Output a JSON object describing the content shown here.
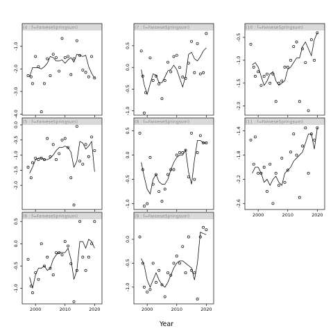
{
  "xlabel": "Year",
  "chart_data": [
    {
      "type": "line",
      "title": "(4 : f=FaroeseSpringsum)",
      "xticks": [
        2000,
        2010,
        2020
      ],
      "xlim": [
        1995.5,
        2022.5
      ],
      "ylim": [
        -4.05,
        -0.3
      ],
      "yticks": [
        -1.0,
        -2.0,
        -3.0,
        -4.0
      ],
      "ytick_labels": [
        "-1.0",
        "-2.0",
        "-3.0",
        "-4.0"
      ],
      "show_xticks": false,
      "line_x": [
        1998,
        1999,
        2000,
        2001,
        2002,
        2003,
        2004,
        2005,
        2006,
        2007,
        2008,
        2009,
        2010,
        2011,
        2012,
        2013,
        2014,
        2015,
        2016,
        2017,
        2018,
        2019,
        2020
      ],
      "line_y": [
        -2.35,
        -1.95,
        -1.95,
        -1.95,
        -2.0,
        -1.9,
        -1.75,
        -1.45,
        -1.5,
        -1.65,
        -1.65,
        -1.6,
        -1.75,
        -1.6,
        -1.5,
        -1.7,
        -1.35,
        -1.4,
        -1.45,
        -1.4,
        -1.9,
        -2.2,
        -2.4
      ],
      "points_x": [
        1997.5,
        1998.5,
        1999,
        2000,
        2001,
        2002,
        2003,
        2004,
        2005,
        2006,
        2007,
        2008,
        2009,
        2010,
        2011,
        2012,
        2013,
        2014,
        2015,
        2016,
        2017,
        2018,
        2019,
        2020
      ],
      "points_y": [
        -2.3,
        -2.35,
        -2.65,
        -1.45,
        -1.9,
        -3.9,
        -2.65,
        -1.55,
        -2.3,
        -1.35,
        -1.5,
        -2.1,
        -0.65,
        -1.5,
        -1.45,
        -2.25,
        -1.55,
        -0.75,
        -1.4,
        -2.05,
        -2.15,
        -2.35,
        -1.45,
        -2.4
      ]
    },
    {
      "type": "line",
      "title": "(7 : f=FaroeseSpringsum)",
      "xticks": [
        2000,
        2010,
        2020
      ],
      "xlim": [
        1995.5,
        2022.5
      ],
      "ylim": [
        -1.1,
        0.85
      ],
      "yticks": [
        0.5,
        0.0,
        -0.5,
        -1.0
      ],
      "ytick_labels": [
        "0.5",
        "0.0",
        "-0.5",
        "-1.0"
      ],
      "show_xticks": false,
      "line_x": [
        1998,
        1999,
        2000,
        2001,
        2002,
        2003,
        2004,
        2005,
        2006,
        2007,
        2008,
        2009,
        2010,
        2011,
        2012,
        2013,
        2014,
        2015,
        2016,
        2017,
        2018,
        2019,
        2020
      ],
      "line_y": [
        -0.05,
        -0.4,
        -0.62,
        -0.38,
        -0.15,
        -0.18,
        -0.35,
        -0.35,
        -0.22,
        -0.08,
        -0.05,
        0.05,
        -0.05,
        -0.25,
        -0.45,
        -0.2,
        0.3,
        0.35,
        0.2,
        0.15,
        0.25,
        0.38,
        0.45
      ],
      "points_x": [
        1998,
        1998.5,
        1999,
        1999.5,
        2001,
        2002,
        2003,
        2004,
        2005,
        2006,
        2007,
        2008,
        2009,
        2010,
        2011,
        2012,
        2013,
        2014,
        2015,
        2016,
        2017,
        2018,
        2019,
        2020
      ],
      "points_y": [
        0.38,
        -0.2,
        -1.05,
        -0.58,
        0.22,
        -0.3,
        -0.2,
        -0.38,
        -0.72,
        -0.3,
        0.12,
        -0.1,
        0.25,
        0.28,
        0.0,
        -0.22,
        -0.25,
        0.1,
        0.6,
        -0.12,
        0.55,
        -0.15,
        -0.12,
        0.78
      ]
    },
    {
      "type": "line",
      "title": "(10 : f=FaroeseSpringsum)",
      "xticks": [
        2000,
        2010,
        2020
      ],
      "xlim": [
        1995.5,
        2022.5
      ],
      "ylim": [
        -2.2,
        -0.35
      ],
      "yticks": [
        -0.5,
        -1.0,
        -1.5,
        -2.0
      ],
      "ytick_labels": [
        "-0.5",
        "-1.0",
        "-1.5",
        "-2.0"
      ],
      "show_xticks": false,
      "line_x": [
        1998,
        1999,
        2000,
        2001,
        2002,
        2003,
        2004,
        2005,
        2006,
        2007,
        2008,
        2009,
        2010,
        2011,
        2012,
        2013,
        2014,
        2015,
        2016,
        2017,
        2018,
        2019,
        2020
      ],
      "line_y": [
        -1.1,
        -1.05,
        -1.15,
        -1.35,
        -1.55,
        -1.45,
        -1.3,
        -1.25,
        -1.45,
        -1.55,
        -1.5,
        -1.45,
        -1.2,
        -1.15,
        -1.05,
        -0.95,
        -0.95,
        -0.7,
        -0.6,
        -0.75,
        -0.9,
        -0.55,
        -0.4
      ],
      "points_x": [
        1997.5,
        1998.5,
        1999,
        2000,
        2001,
        2002,
        2003,
        2004,
        2005,
        2006,
        2007,
        2008,
        2009,
        2010,
        2011,
        2012,
        2013,
        2014,
        2015,
        2016,
        2017,
        2018,
        2019,
        2020
      ],
      "points_y": [
        -0.65,
        -1.15,
        -1.35,
        -1.25,
        -1.55,
        -1.35,
        -1.3,
        -1.5,
        -1.3,
        -1.9,
        -1.5,
        -1.45,
        -1.15,
        -1.15,
        -1.0,
        -0.7,
        -0.6,
        -1.9,
        -0.75,
        -1.05,
        -2.1,
        -0.55,
        -1.0,
        -0.4
      ]
    },
    {
      "type": "line",
      "title": "(5 : f=FaroeseSpringsum)",
      "xticks": [
        2000,
        2010,
        2020
      ],
      "xlim": [
        1995.5,
        2022.5
      ],
      "ylim": [
        -2.8,
        0.0
      ],
      "yticks": [
        0.0,
        -0.5,
        -1.0,
        -1.5,
        -2.0
      ],
      "ytick_labels": [
        "0.0",
        "-0.5",
        "-1.0",
        "-1.5",
        "-2.0"
      ],
      "show_xticks": false,
      "line_x": [
        1998,
        1999,
        2000,
        2001,
        2002,
        2003,
        2004,
        2005,
        2006,
        2007,
        2008,
        2009,
        2010,
        2011,
        2012,
        2013,
        2014,
        2015,
        2016,
        2017,
        2018,
        2019,
        2020
      ],
      "line_y": [
        -1.6,
        -1.4,
        -1.15,
        -1.1,
        -1.1,
        -1.15,
        -1.15,
        -1.1,
        -1.0,
        -0.85,
        -0.75,
        -0.75,
        -0.7,
        -0.75,
        -0.9,
        -1.4,
        -1.2,
        -0.55,
        -0.6,
        -0.8,
        -0.7,
        -0.55,
        -1.55
      ],
      "points_x": [
        1997.5,
        1998.5,
        1999,
        2000,
        2001,
        2002,
        2003,
        2004,
        2005,
        2006,
        2007,
        2008,
        2009,
        2010,
        2011,
        2012,
        2013,
        2014,
        2015,
        2016,
        2017,
        2018,
        2019,
        2020
      ],
      "points_y": [
        -1.4,
        -1.75,
        -1.25,
        -1.1,
        -1.15,
        -1.1,
        -1.15,
        -0.45,
        -1.05,
        -0.65,
        -1.15,
        -0.95,
        -0.5,
        -0.45,
        -0.75,
        -1.75,
        -2.65,
        -0.05,
        -1.2,
        -1.3,
        -0.65,
        -1.05,
        -0.4,
        -0.85
      ]
    },
    {
      "type": "line",
      "title": "(8 : f=FaroeseSpringsum)",
      "xticks": [
        2000,
        2010,
        2020
      ],
      "xlim": [
        1995.5,
        2022.5
      ],
      "ylim": [
        -1.12,
        0.62
      ],
      "yticks": [
        0.5,
        0.0,
        -0.5,
        -1.0
      ],
      "ytick_labels": [
        "0.5",
        "0.0",
        "-0.5",
        "-1.0"
      ],
      "show_xticks": false,
      "line_x": [
        1998,
        1999,
        2000,
        2001,
        2002,
        2003,
        2004,
        2005,
        2006,
        2007,
        2008,
        2009,
        2010,
        2011,
        2012,
        2013,
        2014,
        2015,
        2016,
        2017,
        2018,
        2019,
        2020
      ],
      "line_y": [
        -0.15,
        -0.45,
        -0.7,
        -0.8,
        -0.5,
        -0.4,
        -0.55,
        -0.6,
        -0.6,
        -0.5,
        -0.3,
        -0.15,
        -0.05,
        0.0,
        0.0,
        0.1,
        -0.35,
        -0.6,
        -0.1,
        0.3,
        0.3,
        0.25,
        0.25
      ],
      "points_x": [
        1997.5,
        1998.5,
        1999,
        2000,
        2001,
        2002,
        2003,
        2004,
        2005,
        2006,
        2007,
        2008,
        2009,
        2010,
        2011,
        2012,
        2013,
        2014,
        2015,
        2016,
        2017,
        2018,
        2019,
        2020
      ],
      "points_y": [
        0.45,
        -0.3,
        -1.05,
        -1.0,
        -0.05,
        -0.6,
        -0.4,
        -0.75,
        -0.95,
        -0.7,
        -0.4,
        -0.3,
        -0.3,
        0.0,
        0.05,
        0.05,
        0.1,
        -0.45,
        0.45,
        -0.5,
        0.05,
        0.4,
        0.25,
        0.25
      ]
    },
    {
      "type": "line",
      "title": "(11 : f=FaroeseSpringsum)",
      "xticks": [
        2000,
        2010,
        2020
      ],
      "xlim": [
        1995.5,
        2022.5
      ],
      "ylim": [
        -2.7,
        -1.3
      ],
      "yticks": [
        -1.4,
        -1.8,
        -2.2,
        -2.6
      ],
      "ytick_labels": [
        "-1.4",
        "-1.8",
        "-2.2",
        "-2.6"
      ],
      "show_xticks": true,
      "line_x": [
        1998,
        1999,
        2000,
        2001,
        2002,
        2003,
        2004,
        2005,
        2006,
        2007,
        2008,
        2009,
        2010,
        2011,
        2012,
        2013,
        2014,
        2015,
        2016,
        2017,
        2018,
        2019,
        2020
      ],
      "line_y": [
        -2.1,
        -2.0,
        -2.0,
        -2.1,
        -2.25,
        -2.2,
        -2.3,
        -2.2,
        -2.15,
        -2.25,
        -2.3,
        -2.1,
        -2.05,
        -2.0,
        -1.9,
        -1.85,
        -1.8,
        -1.75,
        -1.6,
        -1.45,
        -1.45,
        -1.7,
        -1.35
      ],
      "points_x": [
        1997.5,
        1998.5,
        1999,
        2000,
        2001,
        2002,
        2003,
        2004,
        2005,
        2006,
        2007,
        2008,
        2009,
        2010,
        2011,
        2012,
        2013,
        2014,
        2015,
        2016,
        2017,
        2018,
        2019,
        2020
      ],
      "points_y": [
        -1.55,
        -1.95,
        -1.5,
        -2.1,
        -2.1,
        -2.0,
        -2.4,
        -1.95,
        -2.6,
        -2.1,
        -2.3,
        -1.85,
        -2.25,
        -2.05,
        -1.75,
        -1.45,
        -1.8,
        -2.5,
        -1.65,
        -1.35,
        -2.1,
        -1.45,
        -1.55,
        -1.35
      ]
    },
    {
      "type": "line",
      "title": "(6 : f=FaroeseSpringsum)",
      "xticks": [
        2000,
        2010,
        2020
      ],
      "xlim": [
        1995.5,
        2022.5
      ],
      "ylim": [
        -1.35,
        0.55
      ],
      "yticks": [
        0.5,
        0.0,
        -0.5,
        -1.0
      ],
      "ytick_labels": [
        "0.5",
        "0.0",
        "-0.5",
        "-1.0"
      ],
      "show_xticks": true,
      "line_x": [
        1998,
        1999,
        2000,
        2001,
        2002,
        2003,
        2004,
        2005,
        2006,
        2007,
        2008,
        2009,
        2010,
        2011,
        2012,
        2013,
        2014,
        2015,
        2016,
        2017,
        2018,
        2019,
        2020
      ],
      "line_y": [
        -0.75,
        -1.0,
        -0.7,
        -0.55,
        -0.55,
        -0.5,
        -0.6,
        -0.55,
        -0.35,
        -0.25,
        -0.2,
        -0.2,
        -0.2,
        -0.1,
        -0.35,
        -0.8,
        -0.6,
        0.05,
        0.05,
        -0.1,
        0.1,
        0.05,
        -0.1
      ],
      "points_x": [
        1997.5,
        1998.5,
        1999,
        2000,
        2001,
        2002,
        2003,
        2004,
        2005,
        2006,
        2007,
        2008,
        2009,
        2010,
        2011,
        2012,
        2013,
        2014,
        2015,
        2016,
        2017,
        2018,
        2019,
        2020
      ],
      "points_y": [
        -0.35,
        -0.95,
        -1.1,
        -0.65,
        -0.8,
        0.0,
        -0.5,
        -0.3,
        -0.55,
        -0.7,
        -0.2,
        -0.2,
        -0.25,
        0.05,
        -0.05,
        -0.45,
        -1.3,
        -0.6,
        0.5,
        -0.3,
        -0.6,
        -0.3,
        0.0,
        0.5
      ]
    },
    {
      "type": "line",
      "title": "(9 : f=FaroeseSpringsum)",
      "xticks": [
        2000,
        2010,
        2020
      ],
      "xlim": [
        1995.5,
        2022.5
      ],
      "ylim": [
        -1.35,
        0.42
      ],
      "yticks": [
        0.0,
        -0.5,
        -1.0
      ],
      "ytick_labels": [
        "0.0",
        "-0.5",
        "-1.0"
      ],
      "show_xticks": true,
      "line_x": [
        1998,
        1999,
        2000,
        2001,
        2002,
        2003,
        2004,
        2005,
        2006,
        2007,
        2008,
        2009,
        2010,
        2011,
        2012,
        2013,
        2014,
        2015,
        2016,
        2017,
        2018,
        2019,
        2020
      ],
      "line_y": [
        -0.4,
        -0.55,
        -0.85,
        -1.0,
        -0.85,
        -0.7,
        -0.85,
        -0.95,
        -1.0,
        -0.9,
        -0.75,
        -0.6,
        -0.5,
        -0.45,
        -0.45,
        -0.5,
        -0.55,
        -0.6,
        -0.85,
        -0.5,
        0.15,
        0.12,
        0.1
      ],
      "points_x": [
        1997.5,
        1998.5,
        1999,
        2000,
        2001,
        2002,
        2003,
        2004,
        2005,
        2006,
        2007,
        2008,
        2009,
        2010,
        2011,
        2012,
        2013,
        2014,
        2015,
        2016,
        2017,
        2018,
        2019,
        2020
      ],
      "points_y": [
        0.05,
        -0.5,
        -1.0,
        -1.1,
        -1.05,
        -0.5,
        -0.9,
        -0.65,
        -0.95,
        -1.2,
        -0.7,
        -0.75,
        -0.5,
        -0.35,
        -0.5,
        -0.15,
        -0.7,
        0.05,
        -0.65,
        -0.7,
        -1.25,
        0.05,
        0.25,
        0.2
      ]
    }
  ]
}
